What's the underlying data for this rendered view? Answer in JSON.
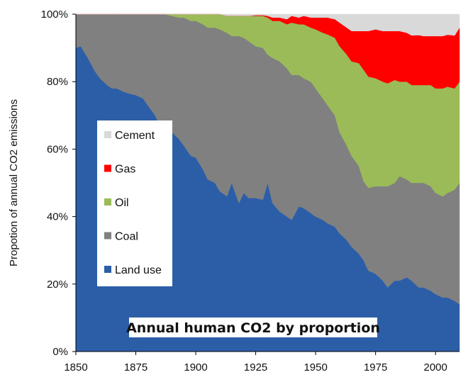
{
  "chart_data": {
    "type": "area",
    "stacked": true,
    "normalized": true,
    "title": "Annual human CO2 by proportion",
    "xlabel": "",
    "ylabel": "Propotion of annual CO2 emissions",
    "xlim": [
      1850,
      2010
    ],
    "ylim": [
      0,
      100
    ],
    "x_ticks": [
      1850,
      1875,
      1900,
      1925,
      1950,
      1975,
      2000
    ],
    "y_ticks": [
      0,
      20,
      40,
      60,
      80,
      100
    ],
    "y_tick_labels": [
      "0%",
      "20%",
      "40%",
      "60%",
      "80%",
      "100%"
    ],
    "legend_position": "left-middle",
    "x": [
      1850,
      1852,
      1855,
      1858,
      1860,
      1863,
      1865,
      1867,
      1870,
      1872,
      1875,
      1878,
      1880,
      1883,
      1885,
      1887,
      1890,
      1893,
      1895,
      1898,
      1900,
      1903,
      1905,
      1908,
      1910,
      1913,
      1915,
      1918,
      1920,
      1922,
      1925,
      1928,
      1930,
      1932,
      1935,
      1938,
      1940,
      1943,
      1945,
      1948,
      1950,
      1953,
      1955,
      1958,
      1960,
      1963,
      1965,
      1968,
      1970,
      1972,
      1975,
      1978,
      1980,
      1983,
      1985,
      1988,
      1990,
      1993,
      1995,
      1998,
      2000,
      2003,
      2005,
      2008,
      2010
    ],
    "series": [
      {
        "name": "Land use",
        "color": "#2c5ea8",
        "values": [
          90,
          90.5,
          87,
          83,
          81,
          79,
          78,
          78,
          77,
          76.5,
          76,
          75,
          73,
          70,
          67,
          64,
          65,
          63,
          61,
          58,
          57.5,
          54,
          51,
          50,
          47.5,
          46,
          50,
          44,
          47,
          45.5,
          45.5,
          45,
          50,
          44,
          41.5,
          40,
          39,
          43,
          42.5,
          41,
          40,
          39,
          38,
          37,
          35,
          33,
          31,
          29,
          27,
          24,
          23,
          21,
          19,
          21,
          21,
          22,
          21,
          19,
          19,
          18,
          17,
          16,
          16,
          15,
          14
        ]
      },
      {
        "name": "Coal",
        "color": "#808080",
        "values": [
          10,
          9.5,
          13,
          17,
          19,
          21,
          22,
          22,
          23,
          23.5,
          24,
          25,
          27,
          30,
          33,
          36,
          34.5,
          36,
          38,
          40,
          40.5,
          43,
          45,
          46,
          48,
          48.5,
          43.5,
          49.5,
          46,
          46.5,
          45,
          45,
          38,
          43,
          44.5,
          44,
          43,
          39,
          38.5,
          39,
          38,
          36,
          35,
          33,
          30,
          28,
          27,
          26,
          23.5,
          24.5,
          26,
          28,
          30,
          29,
          31,
          29,
          29,
          31,
          31,
          31,
          30,
          30,
          31,
          33,
          36
        ]
      },
      {
        "name": "Oil",
        "color": "#9bbb59",
        "values": [
          0,
          0,
          0,
          0,
          0,
          0,
          0,
          0,
          0,
          0,
          0,
          0,
          0,
          0,
          0,
          0,
          0.5,
          1,
          1,
          2,
          2,
          3,
          4,
          4,
          4.5,
          5,
          6,
          6,
          6.5,
          7.5,
          9,
          9.5,
          11,
          11,
          12,
          13,
          15.5,
          15,
          16,
          16,
          17.5,
          19.5,
          21,
          23,
          25.5,
          27,
          28,
          30.5,
          33,
          33,
          32,
          31,
          30.5,
          30.5,
          28,
          29,
          29,
          29,
          29,
          30,
          31,
          32,
          31.5,
          30,
          30
        ]
      },
      {
        "name": "Gas",
        "color": "#ff0000",
        "values": [
          0,
          0,
          0,
          0,
          0,
          0,
          0,
          0,
          0,
          0,
          0,
          0,
          0,
          0,
          0,
          0,
          0,
          0,
          0,
          0,
          0,
          0,
          0,
          0,
          0,
          0,
          0,
          0,
          0,
          0,
          0.2,
          0.2,
          0.5,
          1,
          1,
          1.5,
          2,
          2,
          2.5,
          3,
          3.5,
          4.5,
          5,
          5.5,
          7,
          8,
          9,
          9.5,
          11.5,
          13.5,
          14.5,
          15,
          15.5,
          14.5,
          15,
          14.5,
          14.7,
          14.8,
          14.5,
          14.5,
          15.5,
          15.5,
          15.4,
          15.7,
          16
        ]
      },
      {
        "name": "Cement",
        "color": "#d9d9d9",
        "values": [
          0,
          0,
          0,
          0,
          0,
          0,
          0,
          0,
          0,
          0,
          0,
          0,
          0,
          0,
          0,
          0,
          0,
          0,
          0,
          0,
          0,
          0,
          0,
          0,
          0,
          0.5,
          0.5,
          0.5,
          0.5,
          0.5,
          0.3,
          0.3,
          0.5,
          1,
          1,
          1.5,
          0.5,
          1,
          0.5,
          1,
          1,
          1,
          1,
          1.5,
          2.5,
          4,
          5,
          5,
          5,
          5,
          4.5,
          5,
          5,
          5,
          5,
          5.5,
          6.3,
          6.2,
          6.5,
          6.5,
          6.5,
          6.5,
          6.1,
          6.3,
          4
        ]
      }
    ],
    "legend": [
      "Cement",
      "Gas",
      "Oil",
      "Coal",
      "Land use"
    ]
  }
}
